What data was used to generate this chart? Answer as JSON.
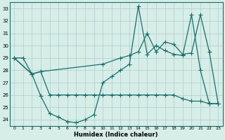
{
  "xlabel": "Humidex (Indice chaleur)",
  "background_color": "#d6ede8",
  "grid_color": "#b0cccc",
  "line_color": "#1a6e6a",
  "xlim": [
    -0.5,
    23.5
  ],
  "ylim": [
    23.5,
    33.5
  ],
  "yticks": [
    24,
    25,
    26,
    27,
    28,
    29,
    30,
    31,
    32,
    33
  ],
  "xticks": [
    0,
    1,
    2,
    3,
    4,
    5,
    6,
    7,
    8,
    9,
    10,
    11,
    12,
    13,
    14,
    15,
    16,
    17,
    18,
    19,
    20,
    21,
    22,
    23
  ],
  "line1_x": [
    0,
    1,
    2,
    3,
    4,
    5,
    6,
    7,
    8,
    9,
    10,
    11,
    12,
    13,
    14,
    15,
    16,
    17,
    18,
    19,
    20,
    21,
    22,
    23
  ],
  "line1_y": [
    29.0,
    29.0,
    27.7,
    25.9,
    24.5,
    24.2,
    23.85,
    23.75,
    24.0,
    24.4,
    27.0,
    27.5,
    28.0,
    28.5,
    33.2,
    29.3,
    30.0,
    29.6,
    29.3,
    29.2,
    32.5,
    28.0,
    25.3,
    25.3
  ],
  "line2_x": [
    0,
    2,
    3,
    4,
    5,
    6,
    7,
    8,
    9,
    10,
    11,
    12,
    13,
    14,
    15,
    16,
    17,
    18,
    19,
    20,
    21,
    22,
    23
  ],
  "line2_y": [
    29.0,
    27.7,
    27.9,
    26.0,
    26.0,
    26.0,
    26.0,
    26.0,
    26.0,
    26.0,
    26.0,
    26.0,
    26.0,
    26.0,
    26.0,
    26.0,
    26.0,
    26.0,
    25.7,
    25.5,
    25.5,
    25.3,
    25.3
  ],
  "line3_x": [
    0,
    2,
    3,
    10,
    12,
    13,
    14,
    15,
    16,
    17,
    18,
    19,
    20,
    21,
    22,
    23
  ],
  "line3_y": [
    29.0,
    27.7,
    27.9,
    28.5,
    29.0,
    29.2,
    29.5,
    31.0,
    29.5,
    30.3,
    30.1,
    29.3,
    29.4,
    32.5,
    29.5,
    25.3
  ]
}
